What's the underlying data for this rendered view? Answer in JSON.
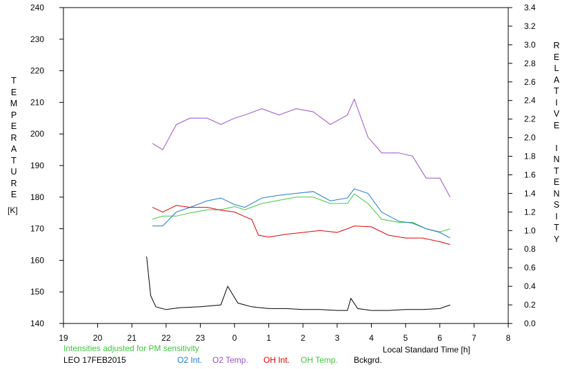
{
  "chart_data": {
    "type": "line",
    "x_axis": {
      "label": "Local Standard Time [h]",
      "tick_labels": [
        "19",
        "20",
        "21",
        "22",
        "23",
        "0",
        "1",
        "2",
        "3",
        "4",
        "5",
        "6",
        "7",
        "8"
      ],
      "range": [
        19,
        32
      ]
    },
    "y_left": {
      "label_letters": [
        "T",
        "E",
        "M",
        "P",
        "E",
        "R",
        "A",
        "T",
        "U",
        "R",
        "E"
      ],
      "unit": "[K]",
      "range": [
        140,
        240
      ],
      "ticks": [
        140,
        150,
        160,
        170,
        180,
        190,
        200,
        210,
        220,
        230,
        240
      ]
    },
    "y_right": {
      "label_letters": [
        "R",
        "E",
        "L",
        "A",
        "T",
        "I",
        "V",
        "E",
        " ",
        "I",
        "N",
        "T",
        "E",
        "N",
        "S",
        "I",
        "T",
        "Y"
      ],
      "range": [
        0.0,
        3.4
      ],
      "ticks": [
        "0.0",
        "0.2",
        "0.4",
        "0.6",
        "0.8",
        "1.0",
        "1.2",
        "1.4",
        "1.6",
        "1.8",
        "2.0",
        "2.2",
        "2.4",
        "2.6",
        "2.8",
        "3.0",
        "3.2",
        "3.4"
      ]
    },
    "note": "Intensities adjusted for PM sensitivity",
    "station_date": "LEO 17FEB2015",
    "legend": [
      {
        "name": "O2 Int.",
        "color": "#1e78d2"
      },
      {
        "name": "O2 Temp.",
        "color": "#9650c8"
      },
      {
        "name": "OH Int.",
        "color": "#e00000"
      },
      {
        "name": "OH Temp.",
        "color": "#3cc83c"
      },
      {
        "name": "Bckgrd.",
        "color": "#000000"
      }
    ],
    "series": [
      {
        "name": "O2 Temp.",
        "axis": "left",
        "color": "#9650c8",
        "x": [
          21.6,
          21.9,
          22.3,
          22.7,
          23.2,
          23.6,
          24.0,
          24.3,
          24.8,
          25.3,
          25.8,
          26.3,
          26.8,
          27.3,
          27.5,
          27.9,
          28.3,
          28.8,
          29.2,
          29.6,
          30.0,
          30.3
        ],
        "y": [
          197,
          195,
          203,
          205,
          205,
          203,
          205,
          206,
          208,
          206,
          208,
          207,
          203,
          206,
          211,
          199,
          194,
          194,
          193,
          186,
          186,
          180
        ]
      },
      {
        "name": "OH Temp.",
        "axis": "left",
        "color": "#3cc83c",
        "x": [
          21.6,
          21.9,
          22.3,
          22.7,
          23.2,
          23.6,
          24.0,
          24.3,
          24.8,
          25.3,
          25.8,
          26.3,
          26.8,
          27.3,
          27.5,
          27.9,
          28.3,
          28.8,
          29.2,
          29.6,
          30.0,
          30.3
        ],
        "y": [
          173,
          174,
          174,
          175,
          176,
          176,
          177,
          176,
          178,
          179,
          180,
          180,
          178,
          178,
          181,
          178,
          173,
          172,
          172,
          170,
          169,
          170
        ]
      },
      {
        "name": "O2 Int.",
        "axis": "right",
        "color": "#1e78d2",
        "x": [
          21.6,
          21.9,
          22.3,
          22.7,
          23.2,
          23.6,
          24.0,
          24.3,
          24.8,
          25.3,
          25.8,
          26.3,
          26.8,
          27.3,
          27.5,
          27.9,
          28.3,
          28.8,
          29.2,
          29.6,
          30.0,
          30.3
        ],
        "y": [
          1.05,
          1.05,
          1.2,
          1.25,
          1.32,
          1.35,
          1.28,
          1.25,
          1.35,
          1.38,
          1.4,
          1.42,
          1.32,
          1.35,
          1.45,
          1.4,
          1.2,
          1.1,
          1.08,
          1.02,
          0.98,
          0.92
        ]
      },
      {
        "name": "OH Int.",
        "axis": "right",
        "color": "#e00000",
        "x": [
          21.6,
          21.9,
          22.3,
          22.7,
          23.2,
          23.6,
          24.0,
          24.3,
          24.5,
          24.7,
          25.0,
          25.5,
          26.0,
          26.5,
          27.0,
          27.3,
          27.5,
          28.0,
          28.5,
          29.0,
          29.5,
          30.0,
          30.3
        ],
        "y": [
          1.25,
          1.2,
          1.27,
          1.25,
          1.25,
          1.22,
          1.2,
          1.15,
          1.12,
          0.95,
          0.93,
          0.96,
          0.98,
          1.0,
          0.98,
          1.02,
          1.05,
          1.04,
          0.95,
          0.92,
          0.92,
          0.88,
          0.85
        ]
      },
      {
        "name": "Bckgrd.",
        "axis": "right",
        "color": "#000000",
        "x": [
          21.43,
          21.55,
          21.7,
          22.0,
          22.4,
          23.0,
          23.6,
          23.8,
          24.1,
          24.5,
          25.0,
          25.5,
          26.0,
          26.5,
          27.0,
          27.3,
          27.4,
          27.6,
          28.0,
          28.5,
          29.0,
          29.5,
          30.0,
          30.3
        ],
        "y": [
          0.72,
          0.3,
          0.18,
          0.15,
          0.17,
          0.18,
          0.2,
          0.4,
          0.22,
          0.18,
          0.16,
          0.16,
          0.15,
          0.15,
          0.14,
          0.14,
          0.27,
          0.16,
          0.14,
          0.14,
          0.15,
          0.15,
          0.16,
          0.2
        ]
      }
    ]
  }
}
